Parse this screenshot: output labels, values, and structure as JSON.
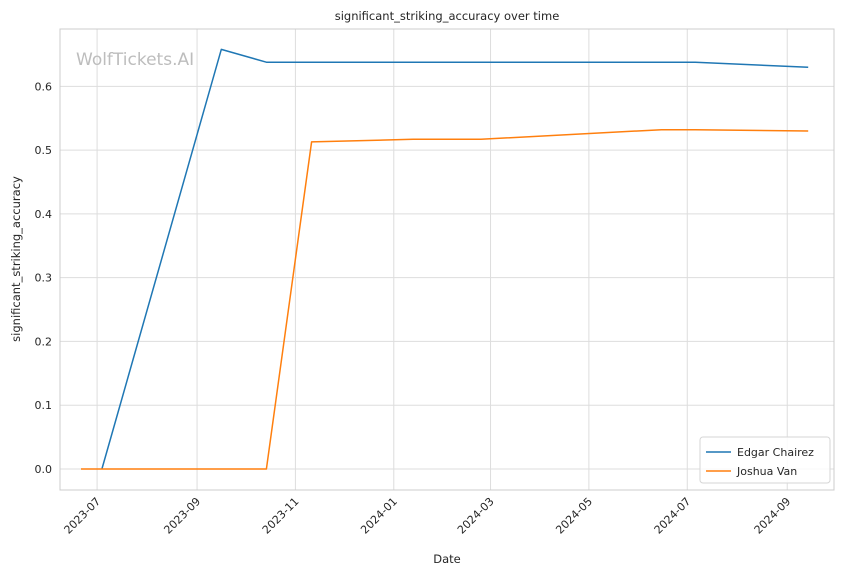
{
  "chart_data": {
    "type": "line",
    "title": "significant_striking_accuracy over time",
    "xlabel": "Date",
    "ylabel": "significant_striking_accuracy",
    "watermark": "WolfTickets.AI",
    "xlim": [
      "2023-06-08",
      "2024-09-30"
    ],
    "ylim": [
      -0.033,
      0.69
    ],
    "x_ticks": [
      "2023-07",
      "2023-09",
      "2023-11",
      "2024-01",
      "2024-03",
      "2024-05",
      "2024-07",
      "2024-09"
    ],
    "x_tick_dates": [
      "2023-07-01",
      "2023-09-01",
      "2023-11-01",
      "2024-01-01",
      "2024-03-01",
      "2024-05-01",
      "2024-07-01",
      "2024-09-01"
    ],
    "y_ticks": [
      0.0,
      0.1,
      0.2,
      0.3,
      0.4,
      0.5,
      0.6
    ],
    "y_tick_labels": [
      "0.0",
      "0.1",
      "0.2",
      "0.3",
      "0.4",
      "0.5",
      "0.6"
    ],
    "grid": true,
    "legend_position": "bottom-right",
    "series": [
      {
        "name": "Edgar Chairez",
        "color": "#1f77b4",
        "x": [
          "2023-07-04",
          "2023-09-16",
          "2023-10-14",
          "2024-07-06",
          "2024-09-14"
        ],
        "y": [
          0.0,
          0.658,
          0.638,
          0.638,
          0.63
        ]
      },
      {
        "name": "Joshua Van",
        "color": "#ff7f0e",
        "x": [
          "2023-06-21",
          "2023-10-14",
          "2023-11-11",
          "2024-01-13",
          "2024-02-24",
          "2024-06-15",
          "2024-07-06",
          "2024-09-14"
        ],
        "y": [
          0.0,
          0.0,
          0.513,
          0.517,
          0.517,
          0.532,
          0.532,
          0.53
        ]
      }
    ]
  }
}
